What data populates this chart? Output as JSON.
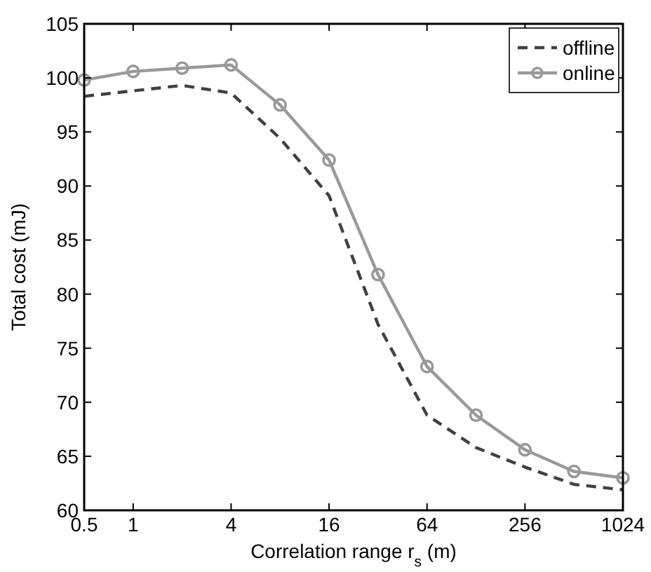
{
  "chart_data": {
    "type": "line",
    "xlabel": "Correlation range r$_{s}$ (m)",
    "ylabel": "Total cost (mJ)",
    "log": "x",
    "x": [
      0.5,
      1,
      2,
      4,
      8,
      16,
      32,
      64,
      128,
      256,
      512,
      1024
    ],
    "xlim": [
      0.5,
      1024
    ],
    "xticks": [
      0.5,
      1,
      4,
      16,
      64,
      256,
      1024
    ],
    "ylim": [
      60,
      105
    ],
    "yticks": [
      60,
      65,
      70,
      75,
      80,
      85,
      90,
      95,
      100,
      105
    ],
    "legend": "top right",
    "grid": false,
    "series": [
      {
        "name": "offline",
        "color": "#404040",
        "line_style": "dashed",
        "marker": "none",
        "values": [
          98.3,
          98.8,
          99.3,
          98.6,
          94.4,
          89.1,
          77.2,
          68.8,
          65.8,
          64.0,
          62.4,
          61.9
        ]
      },
      {
        "name": "online",
        "color": "#999999",
        "line_style": "solid",
        "marker": "circle",
        "values": [
          99.8,
          100.6,
          100.9,
          101.2,
          97.5,
          92.4,
          81.8,
          73.3,
          68.8,
          65.6,
          63.6,
          63.0
        ]
      }
    ]
  }
}
